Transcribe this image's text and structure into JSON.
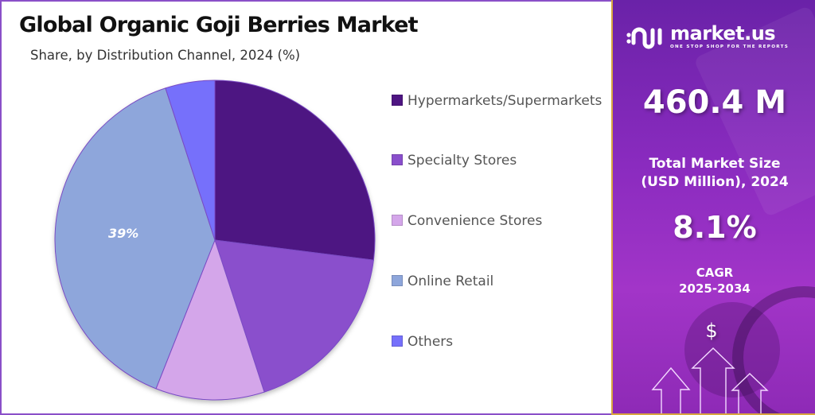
{
  "header": {
    "title": "Global Organic Goji Berries Market",
    "subtitle": "Share, by Distribution Channel, 2024 (%)"
  },
  "chart_data": {
    "type": "pie",
    "title": "Global Organic Goji Berries Market",
    "subtitle": "Share, by Distribution Channel, 2024 (%)",
    "categories": [
      "Hypermarkets/Supermarkets",
      "Specialty Stores",
      "Convenience Stores",
      "Online Retail",
      "Others"
    ],
    "values": [
      27,
      18,
      11,
      39,
      5
    ],
    "colors": [
      "#4e1582",
      "#8a4fcc",
      "#d4a6ea",
      "#8ea6db",
      "#7670fb"
    ],
    "data_labels": [
      {
        "category": "Online Retail",
        "text": "39%"
      }
    ],
    "start_angle": "12 o'clock, clockwise",
    "legend_position": "right"
  },
  "pie": {
    "label_online": "39%"
  },
  "legend": {
    "items": [
      {
        "label": "Hypermarkets/Supermarkets",
        "color": "#4e1582"
      },
      {
        "label": "Specialty Stores",
        "color": "#8a4fcc"
      },
      {
        "label": "Convenience Stores",
        "color": "#d4a6ea"
      },
      {
        "label": "Online Retail",
        "color": "#8ea6db"
      },
      {
        "label": "Others",
        "color": "#7670fb"
      }
    ]
  },
  "sidebar": {
    "brand": "market.us",
    "tagline": "ONE STOP SHOP FOR THE REPORTS",
    "market_size_value": "460.4 M",
    "market_size_caption_1": "Total Market Size",
    "market_size_caption_2": "(USD Million), 2024",
    "cagr_value": "8.1%",
    "cagr_caption_1": "CAGR",
    "cagr_caption_2": "2025-2034",
    "dollar_symbol": "$"
  }
}
